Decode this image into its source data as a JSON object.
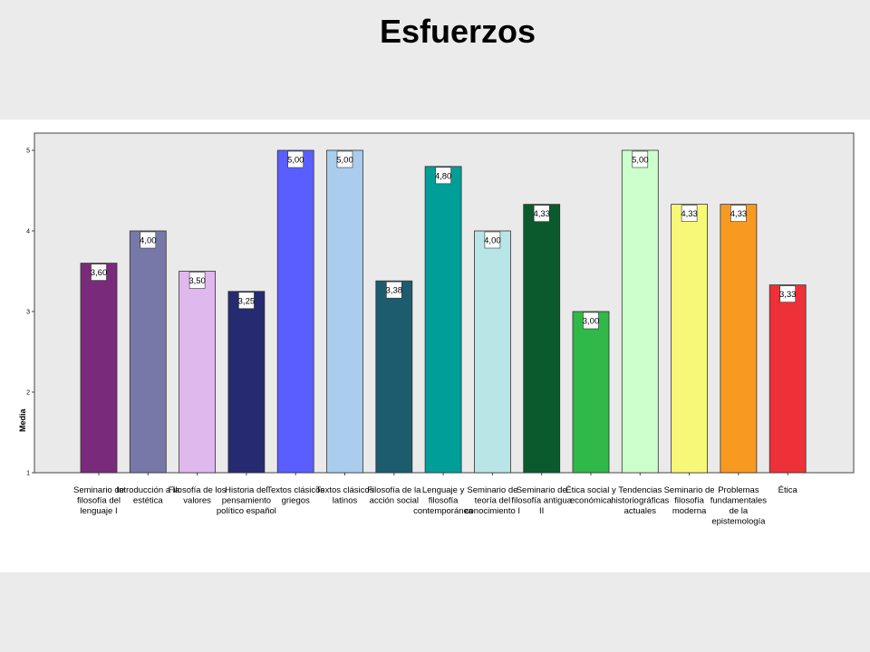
{
  "slide": {
    "title": "Esfuerzos"
  },
  "chart_data": {
    "type": "bar",
    "ylabel": "Media",
    "xlabel": "",
    "ylim": [
      1,
      5.2
    ],
    "yticks": [
      "1",
      "2",
      "3",
      "4",
      "5"
    ],
    "grid": false,
    "background": "#eaeaea",
    "categories": [
      [
        "Seminario de",
        "filosofía del",
        "lenguaje I"
      ],
      [
        "Introducción a la",
        "estética"
      ],
      [
        "Filosofía de los",
        "valores"
      ],
      [
        "Historia del",
        "pensamiento",
        "político español"
      ],
      [
        "Textos clásicos",
        "griegos"
      ],
      [
        "Textos clásicos",
        "latinos"
      ],
      [
        "Filosofía de la",
        "acción social"
      ],
      [
        "Lenguaje y",
        "filosofía",
        "contemporánea"
      ],
      [
        "Seminario de",
        "teoría del",
        "conocimiento I"
      ],
      [
        "Seminario de",
        "filosofía antigua",
        "II"
      ],
      [
        "Ética social y",
        "económica"
      ],
      [
        "Tendencias",
        "historiográficas",
        "actuales"
      ],
      [
        "Seminario de",
        "filosofía",
        "moderna"
      ],
      [
        "Problemas",
        "fundamentales",
        "de la",
        "epistemología"
      ],
      [
        "Ética"
      ]
    ],
    "values": [
      3.6,
      4.0,
      3.5,
      3.25,
      5.0,
      5.0,
      3.38,
      4.8,
      4.0,
      4.33,
      3.0,
      5.0,
      4.33,
      4.33,
      3.33
    ],
    "value_labels": [
      "3,60",
      "4,00",
      "3,50",
      "3,25",
      "5,00",
      "5,00",
      "3,38",
      "4,80",
      "4,00",
      "4,33",
      "3,00",
      "5,00",
      "4,33",
      "4,33",
      "3,33"
    ],
    "colors": [
      "#7a2a7a",
      "#7878a8",
      "#dfb8ee",
      "#262a70",
      "#5a5eff",
      "#aacdee",
      "#1d5c6e",
      "#009e98",
      "#b8e6e6",
      "#0b5a2e",
      "#30b848",
      "#ccffcc",
      "#f8f878",
      "#f89a20",
      "#ee3038"
    ]
  }
}
